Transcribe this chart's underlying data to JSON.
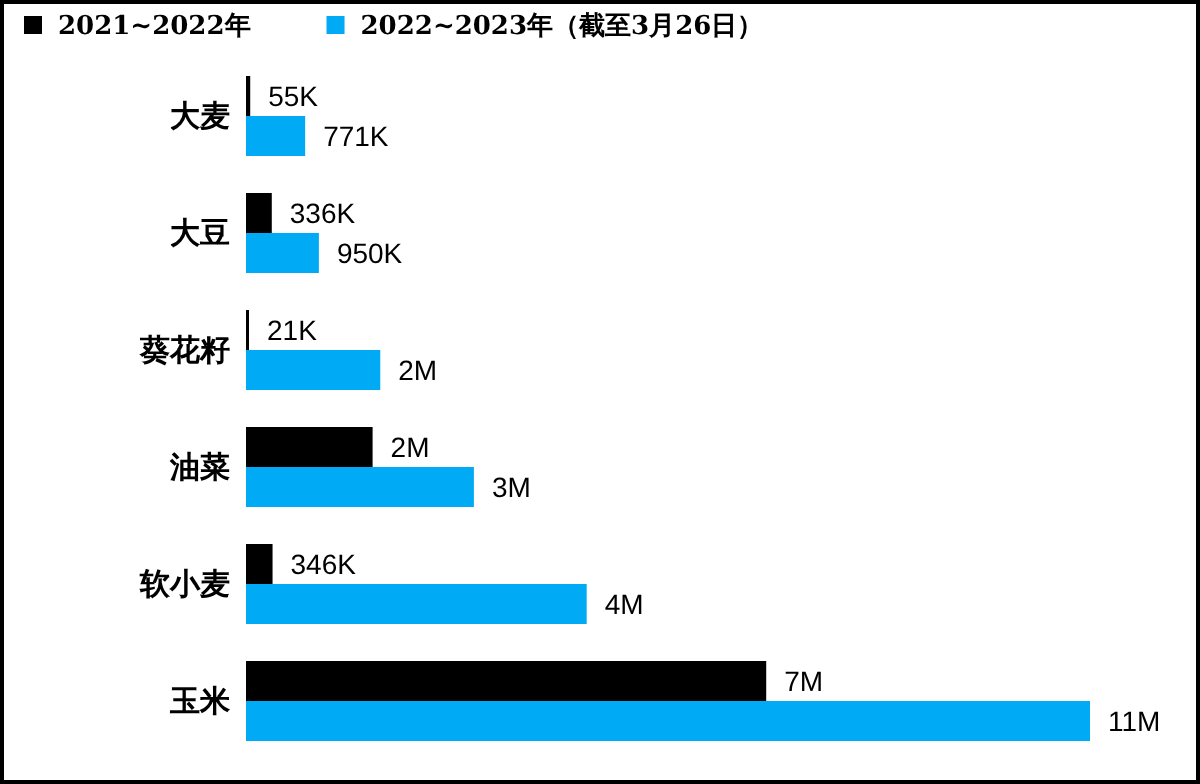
{
  "chart_data": {
    "type": "bar",
    "orientation": "horizontal",
    "legend": "top left",
    "categories": [
      "大麦",
      "大豆",
      "葵花籽",
      "油菜",
      "软小麦",
      "玉米"
    ],
    "series": [
      {
        "name": "2021~2022年",
        "color": "#000000",
        "values": [
          55000,
          336000,
          21000,
          1650000,
          346000,
          6780000
        ],
        "value_labels": [
          "55K",
          "336K",
          "21K",
          "2M",
          "346K",
          "7M"
        ]
      },
      {
        "name": "2022~2023年（截至3月26日）",
        "color": "#00aaf5",
        "values": [
          771000,
          950000,
          1750000,
          2970000,
          4440000,
          11000000
        ],
        "value_labels": [
          "771K",
          "950K",
          "2M",
          "3M",
          "4M",
          "11M"
        ]
      }
    ]
  }
}
